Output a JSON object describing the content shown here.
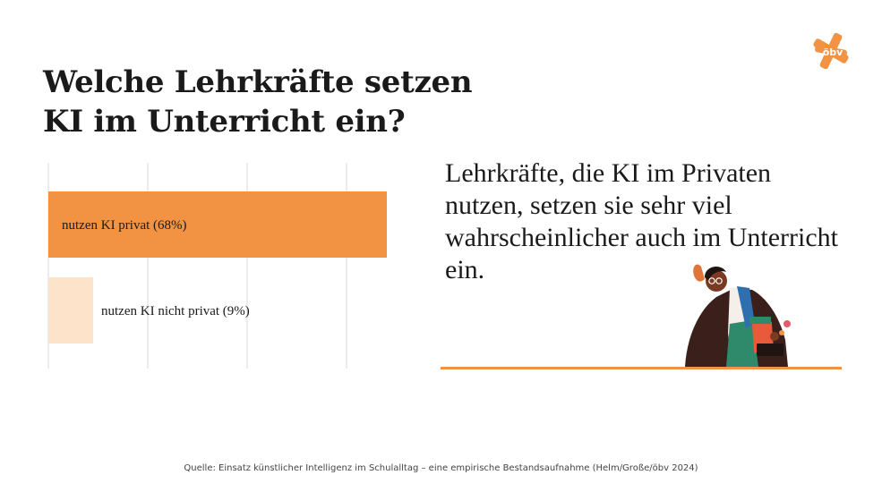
{
  "title_line1": "Welche Lehrkräfte setzen",
  "title_line2": "KI im Unterricht ein?",
  "quote": "Lehrkräfte, die KI im Privaten nutzen, setzen sie sehr viel wahrscheinlicher auch im Unterricht ein.",
  "source": "Quelle: Einsatz künstlicher Intelligenz im Schulalltag – eine empirische Bestandsaufnahme (Helm/Große/öbv 2024)",
  "logo_text": "öbv",
  "colors": {
    "accent": "#f29343",
    "accent_light": "#fde3c9",
    "text": "#1a1a1a",
    "grid": "#e6e6e6"
  },
  "chart_data": {
    "type": "bar",
    "orientation": "horizontal",
    "categories": [
      "nutzen KI privat (68%)",
      "nutzen KI nicht privat (9%)"
    ],
    "values": [
      68,
      9
    ],
    "unit": "%",
    "xlim": [
      0,
      68
    ],
    "grid": true,
    "bar_colors": [
      "#f29343",
      "#fde3c9"
    ]
  }
}
